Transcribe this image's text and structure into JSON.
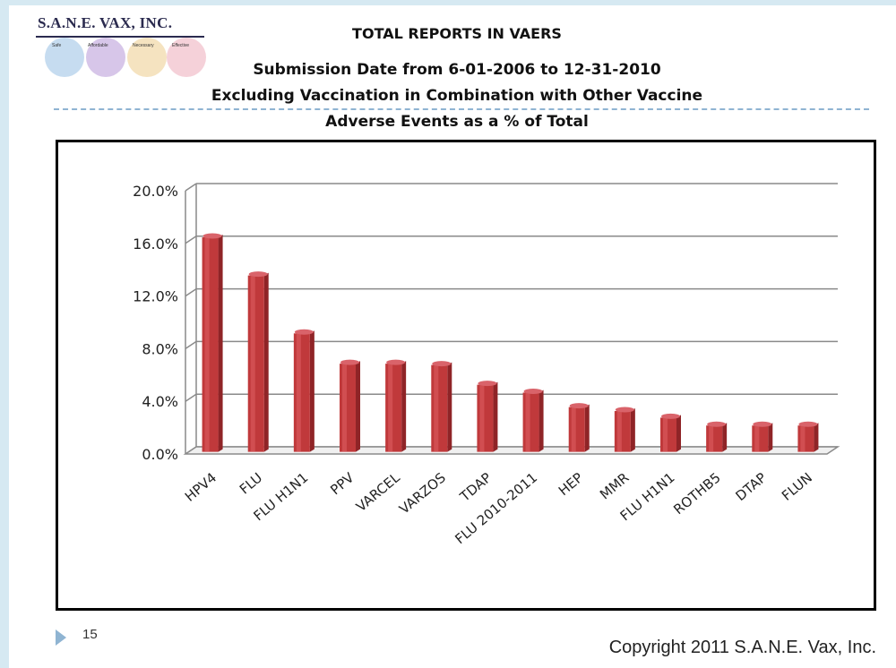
{
  "logo": {
    "title": "S.A.N.E. VAX, INC.",
    "words": [
      "Safe",
      "Affordable",
      "Necessary",
      "Effective"
    ]
  },
  "header": {
    "title": "TOTAL REPORTS IN VAERS",
    "subtitle1": "Submission Date from 6-01-2006  to  12-31-2010",
    "subtitle2": "Excluding Vaccination in Combination with Other Vaccine",
    "subtitle3": "Adverse Events as a % of Total"
  },
  "footer": {
    "page_number": "15",
    "copyright": "Copyright 2011 S.A.N.E. Vax, Inc."
  },
  "colors": {
    "bar": "#c0393b",
    "bar_top": "#d9636a",
    "bar_side": "#8f2427",
    "accent": "#8fb4d2"
  },
  "chart_data": {
    "type": "bar",
    "categories": [
      "HPV4",
      "FLU",
      "FLU  H1N1",
      "PPV",
      "VARCEL",
      "VARZOS",
      "TDAP",
      "FLU 2010-2011",
      "HEP",
      "MMR",
      "FLU H1N1",
      "ROTHB5",
      "DTAP",
      "FLUN"
    ],
    "values": [
      16.3,
      13.4,
      9.0,
      6.7,
      6.7,
      6.6,
      5.1,
      4.5,
      3.4,
      3.1,
      2.6,
      2.0,
      2.0,
      2.0
    ],
    "ylim": [
      0,
      20
    ],
    "yticks": [
      "0.0%",
      "4.0%",
      "8.0%",
      "12.0%",
      "16.0%",
      "20.0%"
    ],
    "ytick_values": [
      0,
      4,
      8,
      12,
      16,
      20
    ],
    "grid": true,
    "legend": "none"
  }
}
